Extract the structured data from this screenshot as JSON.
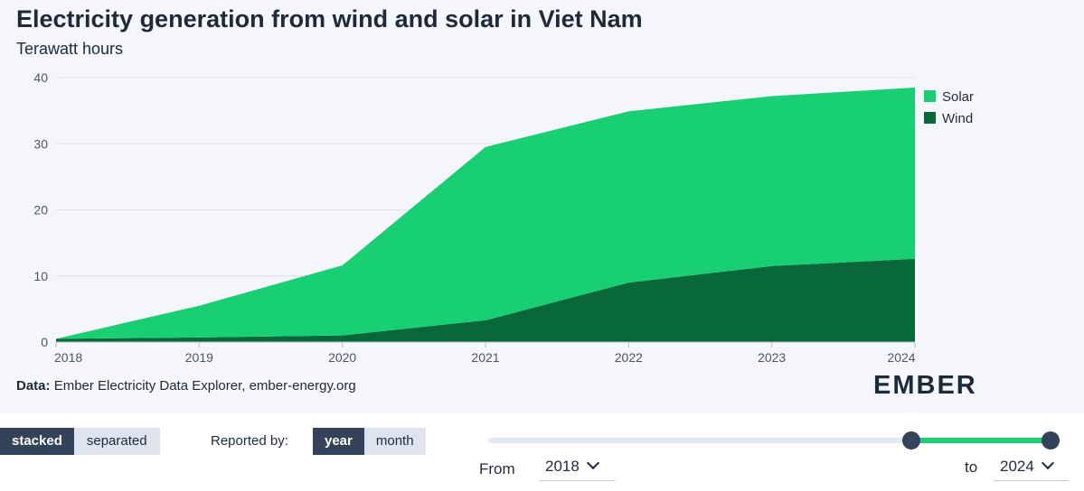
{
  "header": {
    "title": "Electricity generation from wind and solar in Viet Nam",
    "subtitle": "Terawatt hours"
  },
  "source": {
    "prefix": "Data:",
    "text": "Ember Electricity Data Explorer, ember-energy.org"
  },
  "logo": {
    "text": "EMBER"
  },
  "chart_data": {
    "type": "area",
    "stacked": true,
    "x": [
      2018,
      2019,
      2020,
      2021,
      2022,
      2023,
      2024
    ],
    "x_tick_labels": [
      "2018",
      "2019",
      "2020",
      "2021",
      "2022",
      "2023",
      "2024"
    ],
    "y_ticks": [
      0,
      10,
      20,
      30,
      40
    ],
    "ylim": [
      0,
      40
    ],
    "grid": true,
    "legend_placement": "top-right",
    "series": [
      {
        "name": "Wind",
        "color": "#08683a",
        "values": [
          0.5,
          0.7,
          1.0,
          3.3,
          9.0,
          11.5,
          12.6
        ]
      },
      {
        "name": "Solar",
        "color": "#18cf74",
        "values": [
          0.0,
          4.8,
          10.6,
          26.2,
          25.9,
          25.7,
          25.9
        ]
      }
    ],
    "legend_order": [
      "Solar",
      "Wind"
    ]
  },
  "controls": {
    "layout_toggle": [
      {
        "label": "stacked",
        "active": true
      },
      {
        "label": "separated",
        "active": false
      }
    ],
    "reported_by_label": "Reported by:",
    "period_toggle": [
      {
        "label": "year",
        "active": true
      },
      {
        "label": "month",
        "active": false
      }
    ],
    "range": {
      "from_label": "From",
      "from_value": "2018",
      "to_label": "to",
      "to_value": "2024"
    }
  }
}
